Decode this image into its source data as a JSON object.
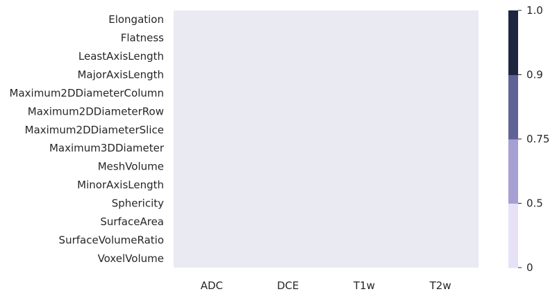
{
  "chart_data": {
    "type": "heatmap",
    "title": "",
    "xlabel": "",
    "ylabel": "",
    "x_categories": [
      "ADC",
      "DCE",
      "T1w",
      "T2w"
    ],
    "y_categories": [
      "Elongation",
      "Flatness",
      "LeastAxisLength",
      "MajorAxisLength",
      "Maximum2DDiameterColumn",
      "Maximum2DDiameterRow",
      "Maximum2DDiameterSlice",
      "Maximum3DDiameter",
      "MeshVolume",
      "MinorAxisLength",
      "Sphericity",
      "SurfaceArea",
      "SurfaceVolumeRatio",
      "VoxelVolume"
    ],
    "values": [],
    "colorbar": {
      "ticks": [
        "0",
        "0.5",
        "0.75",
        "0.9",
        "1.0"
      ],
      "bounds": [
        0,
        0.5,
        0.75,
        0.9,
        1.0
      ],
      "colors": [
        "#e6e1f5",
        "#a59fd2",
        "#5f6296",
        "#1e2540"
      ]
    },
    "plot_background": "#eaeaf2"
  }
}
